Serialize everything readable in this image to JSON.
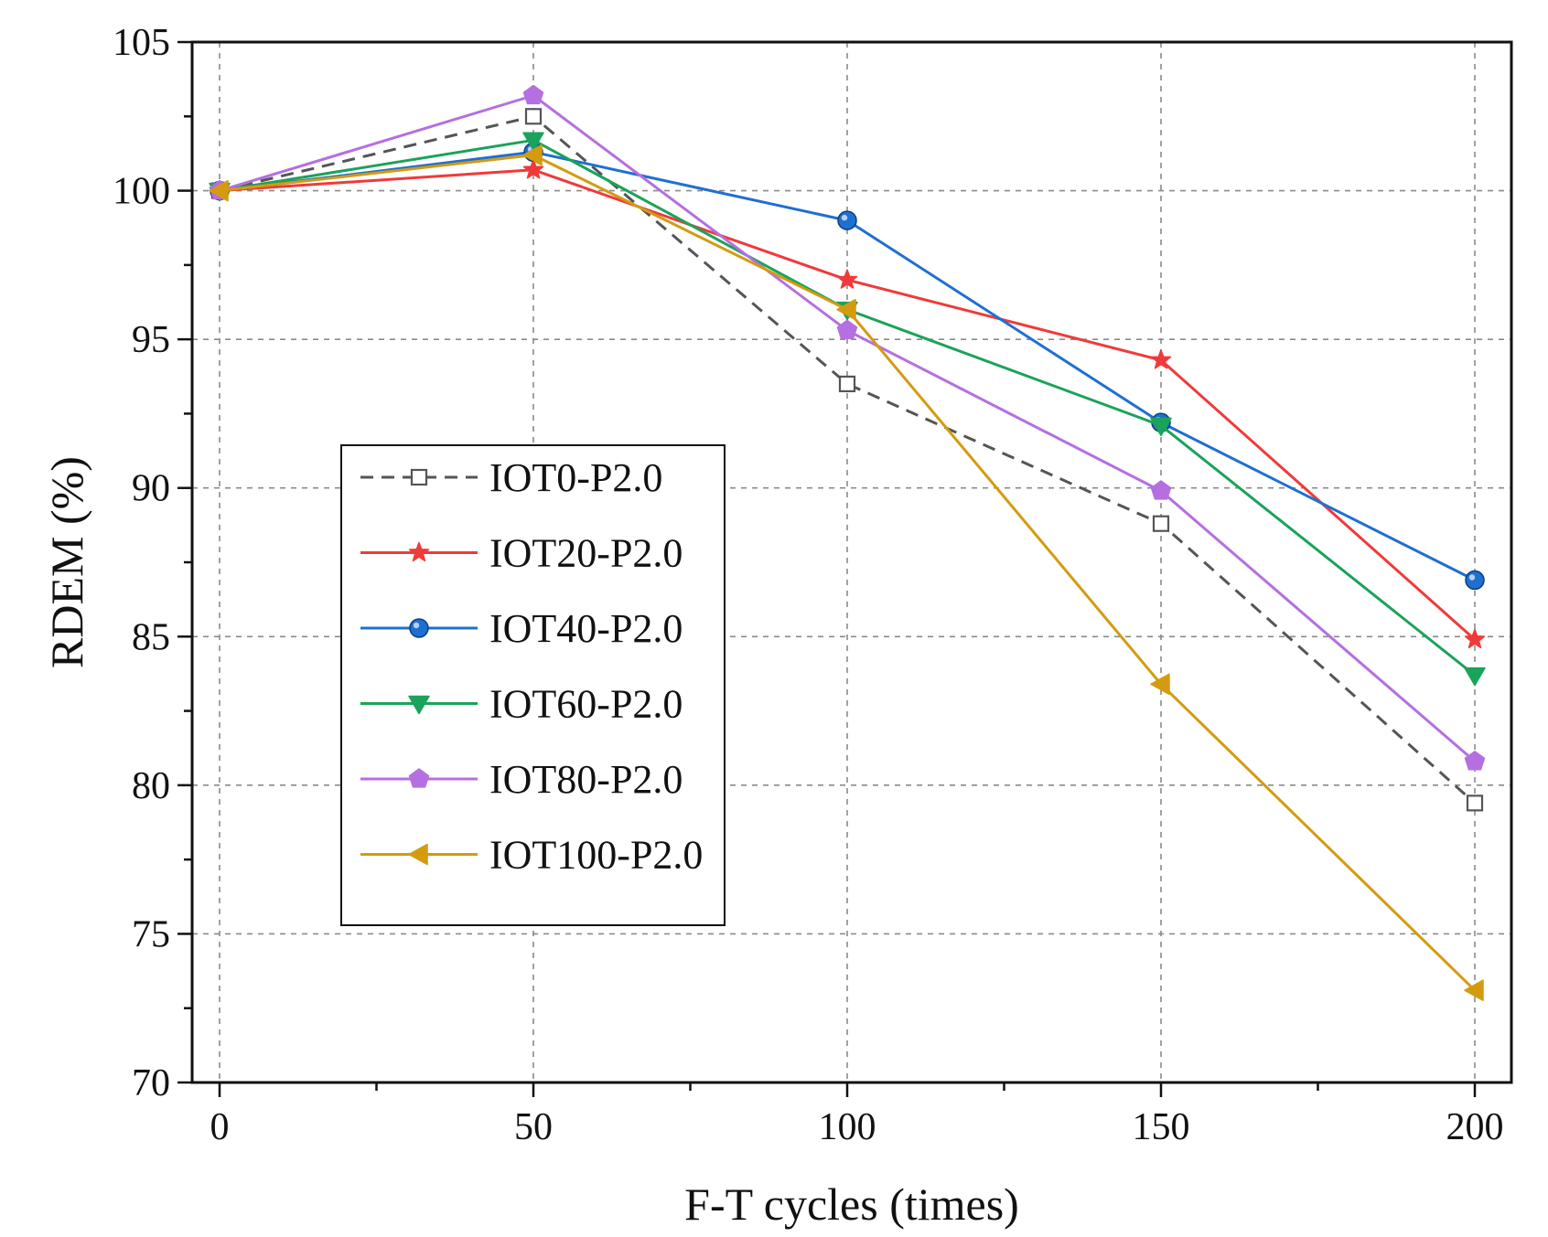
{
  "chart_data": {
    "type": "line",
    "xlabel": "F-T cycles (times)",
    "ylabel": "RDEM (%)",
    "x": [
      0,
      50,
      100,
      150,
      200
    ],
    "xlim": [
      0,
      200
    ],
    "ylim": [
      70,
      105
    ],
    "xticks": [
      0,
      50,
      100,
      150,
      200
    ],
    "yticks": [
      70,
      75,
      80,
      85,
      90,
      95,
      100,
      105
    ],
    "grid": true,
    "legend_position": "center-left",
    "series": [
      {
        "name": "IOT0-P2.0",
        "color": "#555555",
        "marker": "square-open",
        "dashed": true,
        "values": [
          100,
          102.5,
          93.5,
          88.8,
          79.4
        ]
      },
      {
        "name": "IOT20-P2.0",
        "color": "#f03a3a",
        "marker": "star",
        "dashed": false,
        "values": [
          100,
          100.7,
          97.0,
          94.3,
          84.9
        ]
      },
      {
        "name": "IOT40-P2.0",
        "color": "#1f6fd1",
        "marker": "circle",
        "dashed": false,
        "values": [
          100,
          101.3,
          99.0,
          92.2,
          86.9
        ]
      },
      {
        "name": "IOT60-P2.0",
        "color": "#1aa35a",
        "marker": "triangle-down",
        "dashed": false,
        "values": [
          100,
          101.7,
          96.0,
          92.1,
          83.7
        ]
      },
      {
        "name": "IOT80-P2.0",
        "color": "#b56fe0",
        "marker": "pentagon",
        "dashed": false,
        "values": [
          100,
          103.2,
          95.3,
          89.9,
          80.8
        ]
      },
      {
        "name": "IOT100-P2.0",
        "color": "#d49b10",
        "marker": "triangle-left",
        "dashed": false,
        "values": [
          100,
          101.2,
          96.0,
          83.4,
          73.1
        ]
      }
    ]
  }
}
